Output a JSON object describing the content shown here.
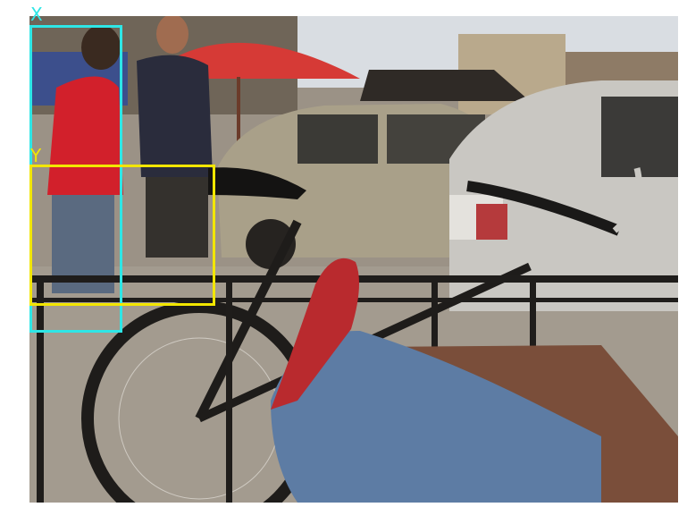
{
  "image": {
    "description_icon": "street-cafe-photo-icon"
  },
  "annotations": [
    {
      "label": "X",
      "color": "#2ee6e6"
    },
    {
      "label": "Y",
      "color": "#f2e600"
    }
  ]
}
